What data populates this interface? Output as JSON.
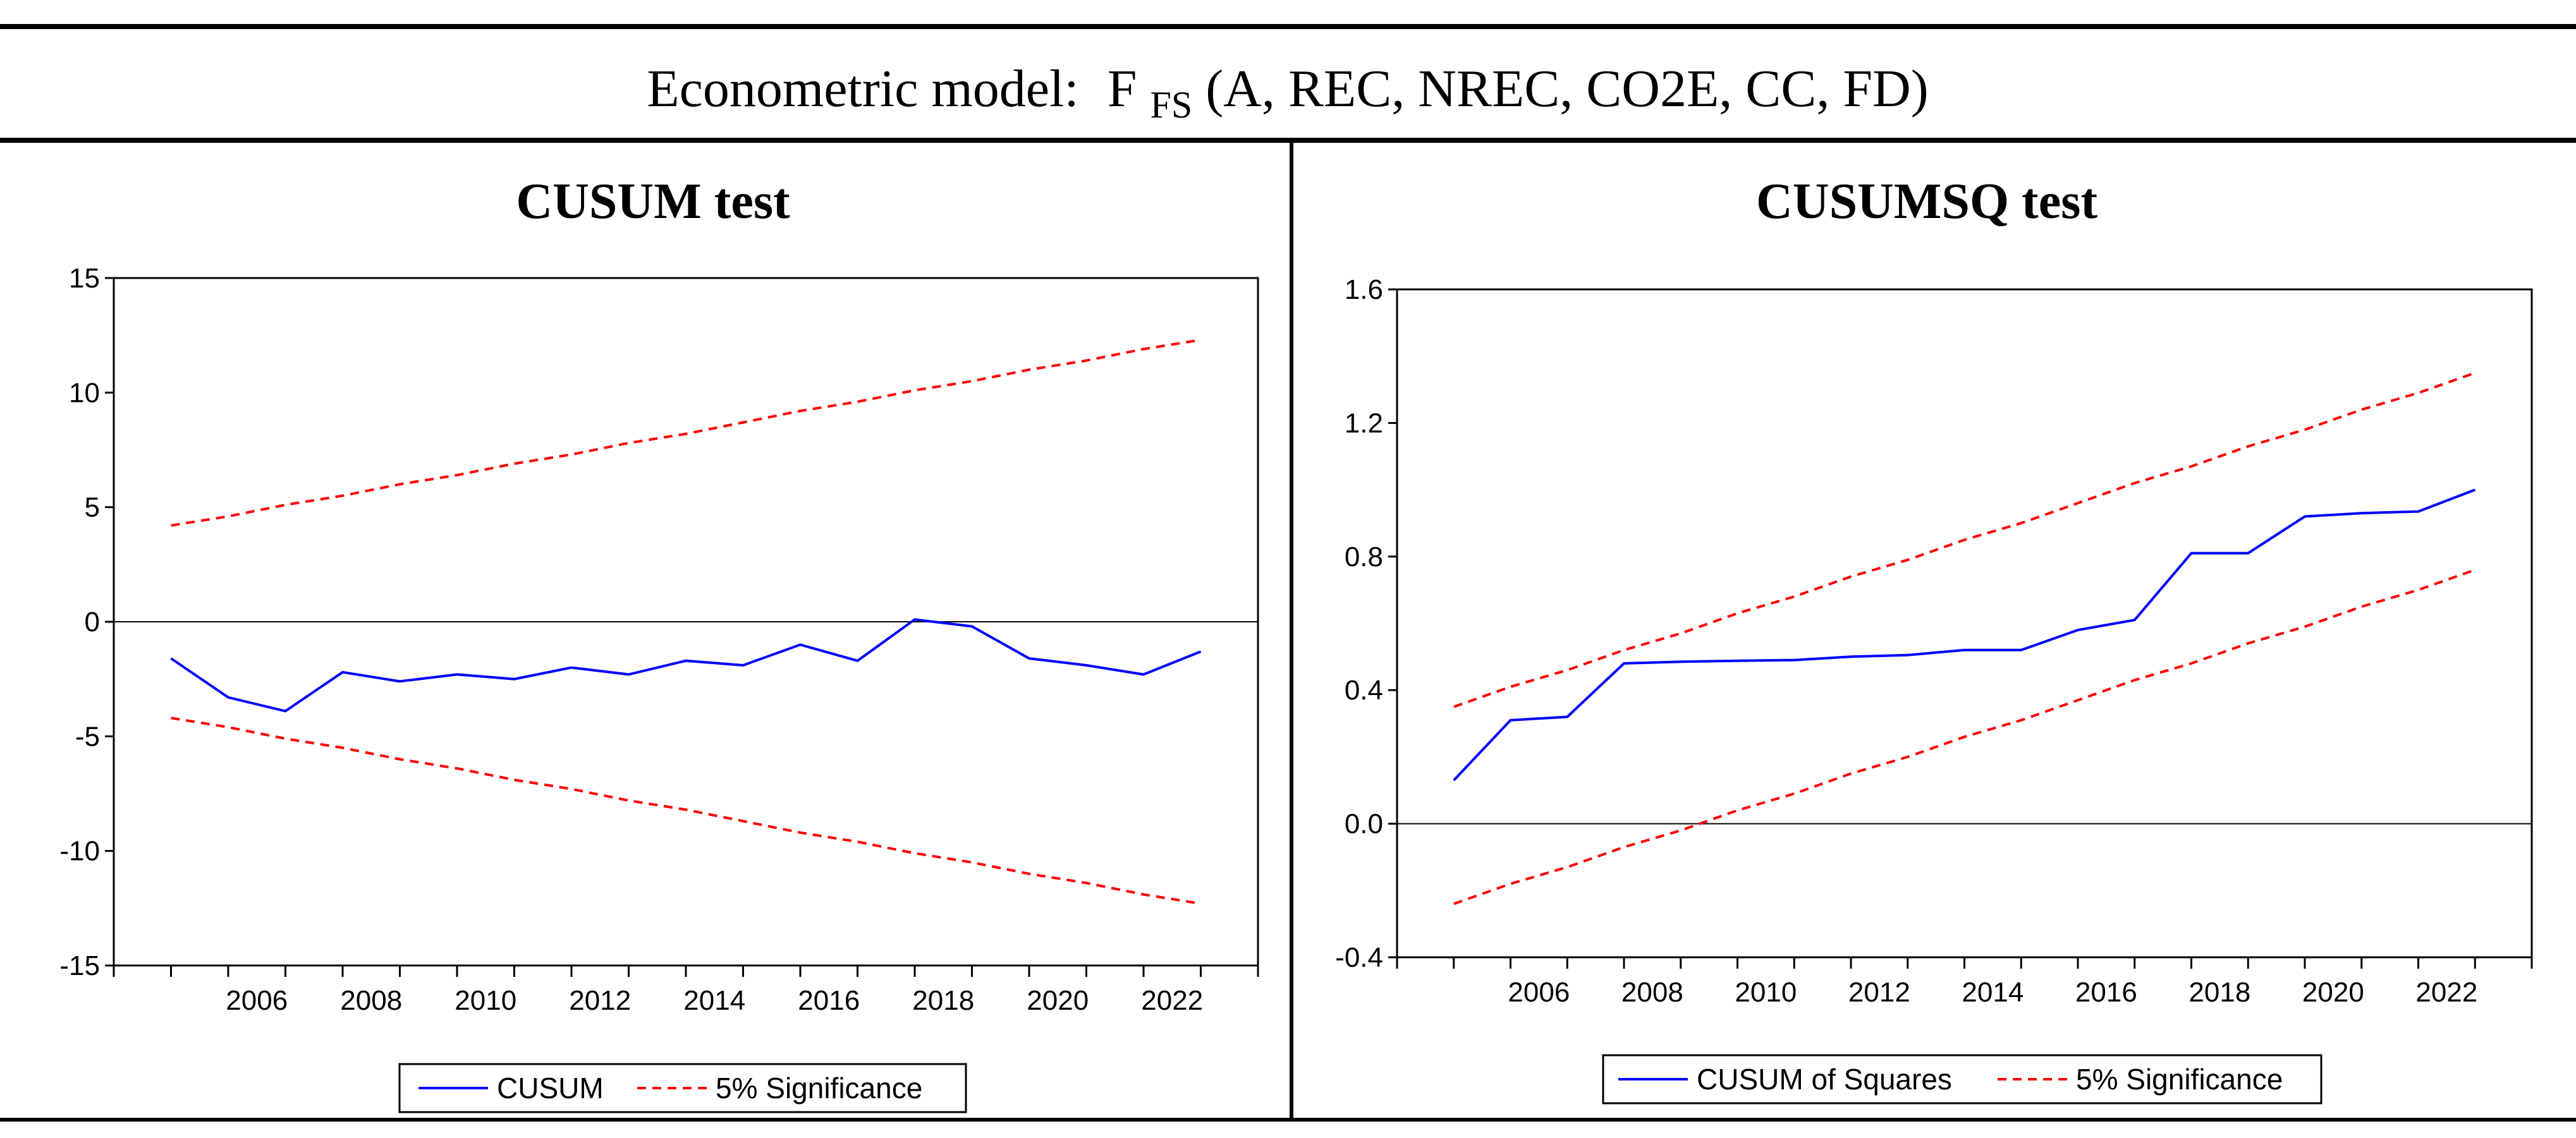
{
  "header": {
    "model_prefix": "Econometric model:",
    "model_function": "F",
    "model_subscript": "FS",
    "model_args": "(A, REC, NREC, CO2E, CC, FD)"
  },
  "colors": {
    "series_line": "#0000ff",
    "bound_line": "#ff0000",
    "zero_line": "#000000",
    "frame": "#000000"
  },
  "chart_data": [
    {
      "type": "line",
      "title": "CUSUM test",
      "xlabel": "",
      "ylabel": "",
      "x": [
        2005,
        2006,
        2007,
        2008,
        2009,
        2010,
        2011,
        2012,
        2013,
        2014,
        2015,
        2016,
        2017,
        2018,
        2019,
        2020,
        2021,
        2022,
        2023
      ],
      "xlim": [
        2004,
        2024
      ],
      "ylim": [
        -15,
        15
      ],
      "yticks": [
        15,
        10,
        5,
        0,
        -5,
        -10,
        -15
      ],
      "ytick_labels": [
        "15",
        "10",
        "5",
        "0",
        "-5",
        "-10",
        "-15"
      ],
      "xticks": [
        2006,
        2008,
        2010,
        2012,
        2014,
        2016,
        2018,
        2020,
        2022
      ],
      "xtick_labels": [
        "2006",
        "2008",
        "2010",
        "2012",
        "2014",
        "2016",
        "2018",
        "2020",
        "2022"
      ],
      "zero_line": 0,
      "series": [
        {
          "name": "CUSUM",
          "style": "solid",
          "color": "#0000ff",
          "values": [
            -1.6,
            -3.3,
            -3.9,
            -2.2,
            -2.6,
            -2.3,
            -2.5,
            -2.0,
            -2.3,
            -1.7,
            -1.9,
            -1.0,
            -1.7,
            0.1,
            -0.2,
            -1.6,
            -1.9,
            -2.3,
            -1.3
          ]
        },
        {
          "name": "5% Significance",
          "style": "dashed",
          "color": "#ff0000",
          "values": [
            4.2,
            4.6,
            5.1,
            5.5,
            6.0,
            6.4,
            6.9,
            7.3,
            7.8,
            8.2,
            8.7,
            9.2,
            9.6,
            10.1,
            10.5,
            11.0,
            11.4,
            11.9,
            12.3
          ]
        },
        {
          "name": "5% Significance (lower)",
          "style": "dashed",
          "color": "#ff0000",
          "values": [
            -4.2,
            -4.6,
            -5.1,
            -5.5,
            -6.0,
            -6.4,
            -6.9,
            -7.3,
            -7.8,
            -8.2,
            -8.7,
            -9.2,
            -9.6,
            -10.1,
            -10.5,
            -11.0,
            -11.4,
            -11.9,
            -12.3
          ]
        }
      ],
      "legend": {
        "position": "bottom-center",
        "labels": [
          "CUSUM",
          "5% Significance"
        ]
      }
    },
    {
      "type": "line",
      "title": "CUSUMSQ test",
      "xlabel": "",
      "ylabel": "",
      "x": [
        2005,
        2006,
        2007,
        2008,
        2009,
        2010,
        2011,
        2012,
        2013,
        2014,
        2015,
        2016,
        2017,
        2018,
        2019,
        2020,
        2021,
        2022,
        2023
      ],
      "xlim": [
        2004,
        2024
      ],
      "ylim": [
        -0.4,
        1.6
      ],
      "yticks": [
        1.6,
        1.2,
        0.8,
        0.4,
        0.0,
        -0.4
      ],
      "ytick_labels": [
        "1.6",
        "1.2",
        "0.8",
        "0.4",
        "0.0",
        "-0.4"
      ],
      "xticks": [
        2006,
        2008,
        2010,
        2012,
        2014,
        2016,
        2018,
        2020,
        2022
      ],
      "xtick_labels": [
        "2006",
        "2008",
        "2010",
        "2012",
        "2014",
        "2016",
        "2018",
        "2020",
        "2022"
      ],
      "zero_line": 0,
      "series": [
        {
          "name": "CUSUM of Squares",
          "style": "solid",
          "color": "#0000ff",
          "values": [
            0.13,
            0.31,
            0.32,
            0.48,
            0.485,
            0.488,
            0.49,
            0.5,
            0.505,
            0.52,
            0.52,
            0.58,
            0.61,
            0.81,
            0.81,
            0.92,
            0.93,
            0.935,
            1.0
          ]
        },
        {
          "name": "5% Significance",
          "style": "dashed",
          "color": "#ff0000",
          "values": [
            0.35,
            0.41,
            0.46,
            0.52,
            0.57,
            0.63,
            0.68,
            0.74,
            0.79,
            0.85,
            0.9,
            0.96,
            1.02,
            1.07,
            1.13,
            1.18,
            1.24,
            1.29,
            1.35
          ]
        },
        {
          "name": "5% Significance (lower)",
          "style": "dashed",
          "color": "#ff0000",
          "values": [
            -0.24,
            -0.18,
            -0.13,
            -0.07,
            -0.02,
            0.04,
            0.09,
            0.15,
            0.2,
            0.26,
            0.31,
            0.37,
            0.43,
            0.48,
            0.54,
            0.59,
            0.65,
            0.7,
            0.76
          ]
        }
      ],
      "legend": {
        "position": "bottom-center",
        "labels": [
          "CUSUM of Squares",
          "5% Significance"
        ]
      }
    }
  ]
}
